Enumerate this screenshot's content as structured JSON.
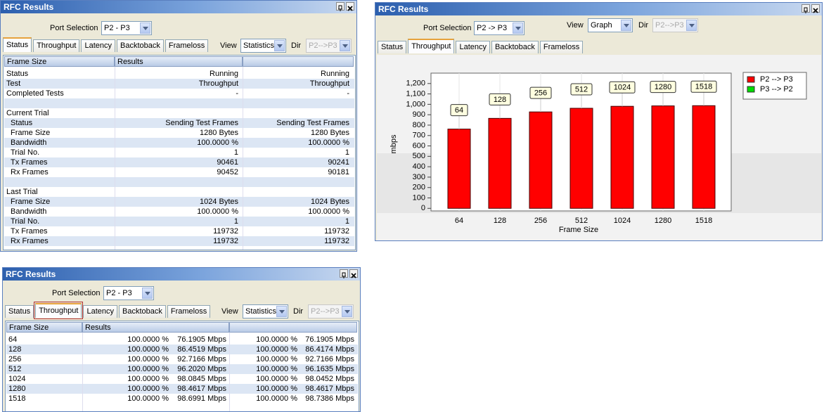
{
  "status_panel": {
    "title": "RFC Results",
    "port_label": "Port Selection",
    "port_value": "P2 - P3",
    "tabs": [
      "Status",
      "Throughput",
      "Latency",
      "Backtoback",
      "Frameloss"
    ],
    "active_tab": 0,
    "view_label": "View",
    "view_value": "Statistics",
    "dir_label": "Dir",
    "dir_value": "P2-->P3",
    "columns": [
      "Frame Size",
      "Results"
    ],
    "groups": [
      {
        "rows": [
          [
            "Status",
            "Running",
            "Running"
          ],
          [
            "Test",
            "Throughput",
            "Throughput"
          ],
          [
            "Completed Tests",
            "-",
            "-"
          ]
        ]
      },
      {
        "heading": "Current Trial",
        "rows": [
          [
            "Status",
            "Sending Test Frames",
            "Sending Test Frames"
          ],
          [
            "Frame Size",
            "1280 Bytes",
            "1280 Bytes"
          ],
          [
            "Bandwidth",
            "100.0000 %",
            "100.0000 %"
          ],
          [
            "Trial No.",
            "1",
            "1"
          ],
          [
            "Tx Frames",
            "90461",
            "90241"
          ],
          [
            "Rx Frames",
            "90452",
            "90181"
          ]
        ]
      },
      {
        "heading": "Last Trial",
        "rows": [
          [
            "Frame Size",
            "1024 Bytes",
            "1024 Bytes"
          ],
          [
            "Bandwidth",
            "100.0000 %",
            "100.0000 %"
          ],
          [
            "Trial No.",
            "1",
            "1"
          ],
          [
            "Tx Frames",
            "119732",
            "119732"
          ],
          [
            "Rx Frames",
            "119732",
            "119732"
          ]
        ]
      }
    ]
  },
  "graph_panel": {
    "title": "RFC Results",
    "port_label": "Port Selection",
    "port_value": "P2 -> P3",
    "view_label": "View",
    "view_value": "Graph",
    "dir_label": "Dir",
    "dir_value": "P2-->P3",
    "tabs": [
      "Status",
      "Throughput",
      "Latency",
      "Backtoback",
      "Frameloss"
    ],
    "active_tab": 1
  },
  "chart_data": {
    "type": "bar",
    "ylabel": "mbps",
    "xlabel": "Frame Size",
    "categories": [
      "64",
      "128",
      "256",
      "512",
      "1024",
      "1280",
      "1518"
    ],
    "series": [
      {
        "name": "P2 --> P3",
        "color": "#ff0000",
        "values": [
          762,
          865,
          927,
          962,
          981,
          985,
          987
        ]
      },
      {
        "name": "P3 --> P2",
        "color": "#00dd00",
        "values": [
          null,
          null,
          null,
          null,
          null,
          null,
          null
        ]
      }
    ],
    "ylim": [
      -25,
      1300
    ],
    "yticks": [
      0,
      100,
      200,
      300,
      400,
      500,
      600,
      700,
      800,
      900,
      {
        "value": 1000,
        "label": "1,000"
      },
      {
        "value": 1100,
        "label": "1,100"
      },
      {
        "value": 1200,
        "label": "1,200"
      }
    ]
  },
  "throughput_panel": {
    "title": "RFC Results",
    "port_label": "Port Selection",
    "port_value": "P2 - P3",
    "tabs": [
      "Status",
      "Throughput",
      "Latency",
      "Backtoback",
      "Frameloss"
    ],
    "active_tab": 1,
    "view_label": "View",
    "view_value": "Statistics",
    "dir_label": "Dir",
    "dir_value": "P2-->P3",
    "columns": [
      "Frame Size",
      "Results"
    ],
    "rows": [
      [
        "64",
        "100.0000 %",
        "76.1905 Mbps",
        "100.0000 %",
        "76.1905 Mbps"
      ],
      [
        "128",
        "100.0000 %",
        "86.4519 Mbps",
        "100.0000 %",
        "86.4174 Mbps"
      ],
      [
        "256",
        "100.0000 %",
        "92.7166 Mbps",
        "100.0000 %",
        "92.7166 Mbps"
      ],
      [
        "512",
        "100.0000 %",
        "96.2020 Mbps",
        "100.0000 %",
        "96.1635 Mbps"
      ],
      [
        "1024",
        "100.0000 %",
        "98.0845 Mbps",
        "100.0000 %",
        "98.0452 Mbps"
      ],
      [
        "1280",
        "100.0000 %",
        "98.4617 Mbps",
        "100.0000 %",
        "98.4617 Mbps"
      ],
      [
        "1518",
        "100.0000 %",
        "98.6991 Mbps",
        "100.0000 %",
        "98.7386 Mbps"
      ]
    ]
  }
}
